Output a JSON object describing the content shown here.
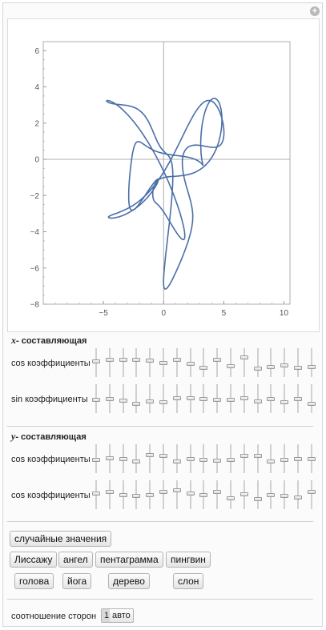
{
  "header": {
    "add_icon": "plus-circle-icon"
  },
  "plot": {
    "x_ticks": [
      "-5",
      "0",
      "5",
      "10"
    ],
    "y_ticks": [
      "6",
      "4",
      "2",
      "0",
      "-2",
      "-4",
      "-6",
      "-8"
    ],
    "xlim": [
      -10,
      10.5
    ],
    "ylim": [
      -8,
      6.5
    ],
    "curve_color": "#4a6ea9"
  },
  "x_component": {
    "title_var": "x",
    "title_rest": "- составляющая",
    "rows": [
      {
        "label": "cos коэффициенты",
        "values": [
          0.55,
          0.6,
          0.62,
          0.62,
          0.58,
          0.5,
          0.6,
          0.45,
          0.3,
          0.62,
          0.35,
          0.7,
          0.25,
          0.32,
          0.4,
          0.3,
          0.33
        ]
      },
      {
        "label": "sin коэффициенты",
        "values": [
          0.45,
          0.48,
          0.42,
          0.3,
          0.38,
          0.36,
          0.52,
          0.52,
          0.47,
          0.46,
          0.46,
          0.52,
          0.38,
          0.47,
          0.34,
          0.5,
          0.3
        ]
      }
    ]
  },
  "y_component": {
    "title_var": "y",
    "title_rest": "- составляющая",
    "rows": [
      {
        "label": "cos коэффициенты",
        "values": [
          0.45,
          0.52,
          0.5,
          0.4,
          0.65,
          0.6,
          0.4,
          0.5,
          0.45,
          0.42,
          0.45,
          0.62,
          0.6,
          0.4,
          0.45,
          0.5,
          0.48
        ]
      },
      {
        "label": "cos коэффициенты",
        "values": [
          0.55,
          0.6,
          0.5,
          0.45,
          0.5,
          0.62,
          0.68,
          0.55,
          0.5,
          0.6,
          0.35,
          0.52,
          0.32,
          0.5,
          0.45,
          0.38,
          0.6
        ]
      }
    ]
  },
  "buttons": {
    "random": "случайные значения",
    "presets_row1": [
      "Лиссажу",
      "ангел",
      "пентаграмма",
      "пингвин"
    ],
    "presets_row2": [
      "голова",
      "йога",
      "дерево",
      "слон"
    ]
  },
  "aspect": {
    "label": "соотношение сторон",
    "options": [
      "1",
      "авто"
    ],
    "selected": "1"
  }
}
